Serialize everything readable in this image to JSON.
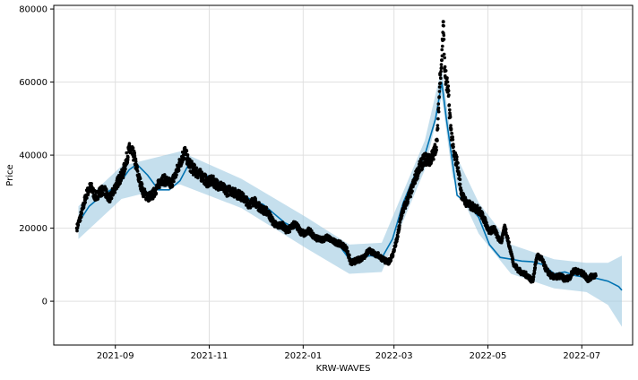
{
  "chart_data": {
    "type": "line",
    "title": "",
    "xlabel": "KRW-WAVES",
    "ylabel": "Price",
    "xlim": [
      "2021-07-23",
      "2022-08-03"
    ],
    "ylim": [
      -12000,
      81000
    ],
    "grid": true,
    "colors": {
      "observed": "#000000",
      "forecast": "#0072B2",
      "interval": "#9ECAE1"
    },
    "x_ticks": [
      {
        "date": "2021-09-01",
        "label": "2021-09"
      },
      {
        "date": "2021-11-01",
        "label": "2021-11"
      },
      {
        "date": "2022-01-01",
        "label": "2022-01"
      },
      {
        "date": "2022-03-01",
        "label": "2022-03"
      },
      {
        "date": "2022-05-01",
        "label": "2022-05"
      },
      {
        "date": "2022-07-01",
        "label": "2022-07"
      }
    ],
    "y_ticks": [
      {
        "value": 0,
        "label": "0"
      },
      {
        "value": 20000,
        "label": "20000"
      },
      {
        "value": 40000,
        "label": "40000"
      },
      {
        "value": 60000,
        "label": "60000"
      },
      {
        "value": 80000,
        "label": "80000"
      }
    ],
    "forecast": {
      "name": "yhat",
      "x": [
        "2021-08-08",
        "2021-08-15",
        "2021-08-22",
        "2021-08-29",
        "2021-09-05",
        "2021-09-10",
        "2021-09-15",
        "2021-09-22",
        "2021-09-29",
        "2021-10-06",
        "2021-10-13",
        "2021-10-18",
        "2021-10-25",
        "2021-11-01",
        "2021-11-08",
        "2021-11-15",
        "2021-11-22",
        "2021-11-29",
        "2021-12-06",
        "2021-12-13",
        "2021-12-20",
        "2021-12-27",
        "2022-01-03",
        "2022-01-10",
        "2022-01-17",
        "2022-01-24",
        "2022-01-31",
        "2022-02-07",
        "2022-02-14",
        "2022-02-21",
        "2022-02-28",
        "2022-03-07",
        "2022-03-14",
        "2022-03-21",
        "2022-03-28",
        "2022-04-01",
        "2022-04-04",
        "2022-04-08",
        "2022-04-11",
        "2022-04-18",
        "2022-04-25",
        "2022-05-02",
        "2022-05-09",
        "2022-05-16",
        "2022-05-23",
        "2022-05-30",
        "2022-06-06",
        "2022-06-13",
        "2022-06-20",
        "2022-06-27",
        "2022-07-04",
        "2022-07-11",
        "2022-07-18",
        "2022-07-25",
        "2022-07-27"
      ],
      "y": [
        21500,
        26000,
        28500,
        30500,
        33000,
        36000,
        37500,
        34500,
        30500,
        30500,
        33000,
        37000,
        35500,
        34000,
        32500,
        31000,
        29500,
        27500,
        26500,
        24000,
        21500,
        20000,
        18800,
        17800,
        16800,
        15500,
        11500,
        12000,
        12500,
        11800,
        17000,
        27000,
        34000,
        40000,
        50000,
        60000,
        50000,
        38000,
        29000,
        26500,
        23000,
        15500,
        12000,
        11500,
        11000,
        10800,
        10000,
        7500,
        8000,
        7000,
        6500,
        6200,
        5500,
        4000,
        3000
      ]
    },
    "interval": {
      "name": "yhat interval",
      "x": [
        "2021-08-08",
        "2021-09-05",
        "2021-10-13",
        "2021-11-22",
        "2022-01-03",
        "2022-01-31",
        "2022-02-21",
        "2022-03-21",
        "2022-04-01",
        "2022-04-08",
        "2022-04-25",
        "2022-05-16",
        "2022-06-13",
        "2022-07-04",
        "2022-07-18",
        "2022-07-27"
      ],
      "upper": [
        26000,
        37000,
        41000,
        33500,
        23000,
        15500,
        16000,
        44000,
        64000,
        42000,
        27000,
        15500,
        11500,
        10500,
        10500,
        12500
      ],
      "lower": [
        17000,
        28000,
        32000,
        25500,
        14500,
        7500,
        8000,
        36000,
        56000,
        34000,
        18500,
        7500,
        3500,
        2500,
        -1000,
        -7000
      ]
    },
    "observed": {
      "name": "y",
      "x": [
        "2021-08-07",
        "2021-08-10",
        "2021-08-13",
        "2021-08-16",
        "2021-08-19",
        "2021-08-22",
        "2021-08-25",
        "2021-08-28",
        "2021-08-31",
        "2021-09-03",
        "2021-09-06",
        "2021-09-08",
        "2021-09-10",
        "2021-09-13",
        "2021-09-16",
        "2021-09-19",
        "2021-09-22",
        "2021-09-25",
        "2021-09-28",
        "2021-10-01",
        "2021-10-04",
        "2021-10-07",
        "2021-10-10",
        "2021-10-13",
        "2021-10-16",
        "2021-10-19",
        "2021-10-22",
        "2021-10-25",
        "2021-10-28",
        "2021-10-31",
        "2021-11-03",
        "2021-11-06",
        "2021-11-09",
        "2021-11-12",
        "2021-11-15",
        "2021-11-18",
        "2021-11-21",
        "2021-11-24",
        "2021-11-27",
        "2021-11-30",
        "2021-12-03",
        "2021-12-06",
        "2021-12-09",
        "2021-12-12",
        "2021-12-15",
        "2021-12-18",
        "2021-12-21",
        "2021-12-24",
        "2021-12-27",
        "2021-12-30",
        "2022-01-02",
        "2022-01-05",
        "2022-01-08",
        "2022-01-11",
        "2022-01-14",
        "2022-01-17",
        "2022-01-20",
        "2022-01-23",
        "2022-01-26",
        "2022-01-29",
        "2022-02-01",
        "2022-02-04",
        "2022-02-07",
        "2022-02-10",
        "2022-02-13",
        "2022-02-16",
        "2022-02-19",
        "2022-02-22",
        "2022-02-25",
        "2022-02-28",
        "2022-03-03",
        "2022-03-06",
        "2022-03-09",
        "2022-03-12",
        "2022-03-15",
        "2022-03-18",
        "2022-03-21",
        "2022-03-24",
        "2022-03-27",
        "2022-03-29",
        "2022-03-31",
        "2022-04-01",
        "2022-04-02",
        "2022-04-03",
        "2022-04-04",
        "2022-04-05",
        "2022-04-07",
        "2022-04-09",
        "2022-04-11",
        "2022-04-14",
        "2022-04-17",
        "2022-04-20",
        "2022-04-23",
        "2022-04-26",
        "2022-04-29",
        "2022-05-02",
        "2022-05-05",
        "2022-05-08",
        "2022-05-10",
        "2022-05-12",
        "2022-05-15",
        "2022-05-18",
        "2022-05-21",
        "2022-05-24",
        "2022-05-27",
        "2022-05-30",
        "2022-06-02",
        "2022-06-05",
        "2022-06-08",
        "2022-06-11",
        "2022-06-14",
        "2022-06-17",
        "2022-06-20",
        "2022-06-23",
        "2022-06-26",
        "2022-06-29",
        "2022-07-02",
        "2022-07-05",
        "2022-07-08",
        "2022-07-10"
      ],
      "y": [
        20000,
        24000,
        29000,
        31500,
        28500,
        30000,
        30500,
        27500,
        30500,
        33000,
        35000,
        38500,
        41500,
        40000,
        34000,
        30000,
        28500,
        29000,
        31000,
        33500,
        33000,
        32000,
        34500,
        38000,
        41000,
        37500,
        36000,
        35000,
        34000,
        32500,
        33000,
        32000,
        31500,
        30000,
        30500,
        29500,
        29000,
        28000,
        26500,
        27500,
        26000,
        25000,
        24500,
        22000,
        20500,
        21000,
        19500,
        20000,
        21500,
        19000,
        18500,
        19500,
        17500,
        17000,
        17000,
        17500,
        16500,
        16000,
        15500,
        14500,
        10500,
        11000,
        11500,
        12500,
        14000,
        13000,
        12500,
        11500,
        10500,
        12500,
        17000,
        24000,
        27000,
        30000,
        34000,
        37000,
        39000,
        38500,
        40500,
        44000,
        62000,
        66000,
        76500,
        63000,
        60000,
        58000,
        47000,
        40000,
        38000,
        29000,
        27000,
        26000,
        25500,
        24500,
        22000,
        19000,
        20000,
        17000,
        16500,
        20500,
        15000,
        10000,
        8500,
        7500,
        7000,
        5500,
        12500,
        11500,
        8500,
        7000,
        6500,
        7000,
        6000,
        6500,
        8500,
        8000,
        7500,
        6000,
        7000,
        7000
      ]
    }
  }
}
